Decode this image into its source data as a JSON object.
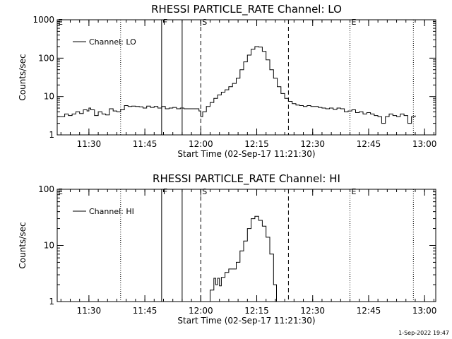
{
  "footer": {
    "timestamp": "1-Sep-2022 19:47"
  },
  "chart_data": [
    {
      "type": "line",
      "title": "RHESSI PARTICLE_RATE Channel: LO",
      "xlabel": "Start Time (02-Sep-17 11:21:30)",
      "ylabel": "Counts/sec",
      "yscale": "log",
      "x_unit": "minutes since 11:21:30",
      "xlim": [
        0,
        101.5
      ],
      "ylim": [
        1,
        1000
      ],
      "x_ticks": [
        {
          "x": 8.5,
          "label": "11:30"
        },
        {
          "x": 23.5,
          "label": "11:45"
        },
        {
          "x": 38.5,
          "label": "12:00"
        },
        {
          "x": 53.5,
          "label": "12:15"
        },
        {
          "x": 68.5,
          "label": "12:30"
        },
        {
          "x": 83.5,
          "label": "12:45"
        },
        {
          "x": 98.5,
          "label": "13:00"
        }
      ],
      "y_ticks": [
        {
          "y": 1,
          "label": "1"
        },
        {
          "y": 10,
          "label": "10"
        },
        {
          "y": 100,
          "label": "100"
        },
        {
          "y": 1000,
          "label": "1000"
        }
      ],
      "legend": {
        "label": "Channel: LO",
        "position": "top-left"
      },
      "event_lines": [
        {
          "x": 17,
          "style": "dotted",
          "label": ""
        },
        {
          "x": 28,
          "style": "solid",
          "label": "F"
        },
        {
          "x": 33.5,
          "style": "solid",
          "label": ""
        },
        {
          "x": 38.5,
          "style": "dashed",
          "label": "S"
        },
        {
          "x": 62,
          "style": "dashed",
          "label": ""
        },
        {
          "x": 78.5,
          "style": "dotted",
          "label": "E"
        },
        {
          "x": 95.5,
          "style": "dotted",
          "label": ""
        }
      ],
      "corner_marker": "E",
      "series": [
        {
          "name": "Channel: LO",
          "x": [
            0,
            2,
            3,
            4,
            5,
            6,
            7,
            8,
            8.5,
            9,
            10,
            11,
            12,
            13,
            14,
            15,
            16,
            17,
            18,
            19,
            20,
            21,
            22,
            23,
            24,
            25,
            26,
            27,
            28,
            29,
            30,
            31,
            32,
            33,
            34,
            35,
            36,
            37,
            38,
            38.5,
            39,
            40,
            41,
            42,
            43,
            44,
            45,
            46,
            47,
            48,
            49,
            50,
            51,
            52,
            53,
            54,
            55,
            56,
            57,
            58,
            59,
            60,
            61,
            62,
            63,
            64,
            65,
            66,
            67,
            68,
            69,
            70,
            71,
            72,
            73,
            74,
            75,
            76,
            77,
            78,
            79,
            80,
            81,
            82,
            83,
            84,
            85,
            86,
            87,
            88,
            89,
            90,
            91,
            92,
            93,
            94,
            95,
            96
          ],
          "values": [
            3,
            3.5,
            3.2,
            3.5,
            4,
            3.6,
            4.5,
            4.2,
            5,
            4.5,
            3.2,
            4,
            3.5,
            3.3,
            4.8,
            4.2,
            4.0,
            4.5,
            5.8,
            5.5,
            5.6,
            5.5,
            5.4,
            5.0,
            5.6,
            5.2,
            5.5,
            5.0,
            5.5,
            4.8,
            5.0,
            5.2,
            4.8,
            5.0,
            4.8,
            4.8,
            4.8,
            4.8,
            4.2,
            3.0,
            4.0,
            5.5,
            7.0,
            9.0,
            11,
            13,
            15,
            18,
            22,
            30,
            50,
            80,
            120,
            170,
            200,
            195,
            150,
            90,
            50,
            30,
            18,
            12,
            9,
            7.5,
            6.5,
            6.0,
            5.8,
            5.5,
            5.8,
            5.5,
            5.5,
            5.2,
            5.0,
            4.8,
            5.0,
            4.6,
            5.0,
            4.8,
            4.0,
            4.2,
            4.5,
            3.8,
            4.0,
            3.5,
            3.8,
            3.5,
            3.2,
            3.0,
            2.0,
            3.0,
            3.5,
            3.2,
            3.0,
            3.5,
            3.2,
            2.0,
            3.0,
            3.2
          ]
        }
      ]
    },
    {
      "type": "line",
      "title": "RHESSI PARTICLE_RATE Channel: HI",
      "xlabel": "Start Time (02-Sep-17 11:21:30)",
      "ylabel": "Counts/sec",
      "yscale": "log",
      "x_unit": "minutes since 11:21:30",
      "xlim": [
        0,
        101.5
      ],
      "ylim": [
        1,
        100
      ],
      "x_ticks": [
        {
          "x": 8.5,
          "label": "11:30"
        },
        {
          "x": 23.5,
          "label": "11:45"
        },
        {
          "x": 38.5,
          "label": "12:00"
        },
        {
          "x": 53.5,
          "label": "12:15"
        },
        {
          "x": 68.5,
          "label": "12:30"
        },
        {
          "x": 83.5,
          "label": "12:45"
        },
        {
          "x": 98.5,
          "label": "13:00"
        }
      ],
      "y_ticks": [
        {
          "y": 1,
          "label": "1"
        },
        {
          "y": 10,
          "label": "10"
        },
        {
          "y": 100,
          "label": "100"
        }
      ],
      "legend": {
        "label": "Channel: HI",
        "position": "top-left"
      },
      "event_lines": [
        {
          "x": 17,
          "style": "dotted",
          "label": ""
        },
        {
          "x": 28,
          "style": "solid",
          "label": "F"
        },
        {
          "x": 33.5,
          "style": "solid",
          "label": ""
        },
        {
          "x": 38.5,
          "style": "dashed",
          "label": "S"
        },
        {
          "x": 62,
          "style": "dashed",
          "label": ""
        },
        {
          "x": 78.5,
          "style": "dotted",
          "label": "E"
        },
        {
          "x": 95.5,
          "style": "dotted",
          "label": ""
        }
      ],
      "corner_marker": "E",
      "series": [
        {
          "name": "Channel: HI",
          "x": [
            40,
            41,
            42,
            42.5,
            43,
            43.5,
            44,
            44.5,
            45,
            46,
            47,
            48,
            49,
            50,
            51,
            52,
            53,
            54,
            55,
            56,
            57,
            58,
            58.8
          ],
          "values": [
            1.0,
            1.6,
            2.6,
            2.0,
            2.6,
            1.9,
            2.7,
            2.7,
            3.3,
            3.8,
            3.8,
            5.0,
            8.0,
            12,
            20,
            30,
            33,
            28,
            22,
            14,
            7,
            2,
            1.0
          ]
        }
      ]
    }
  ]
}
